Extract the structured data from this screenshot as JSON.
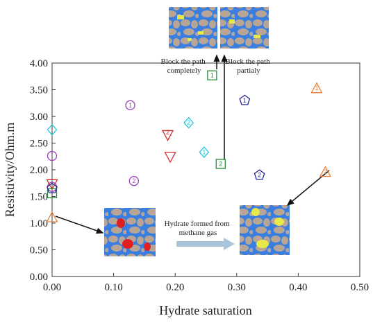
{
  "chart_data": {
    "type": "scatter",
    "xlabel": "Hydrate saturation",
    "ylabel": "Resistivity/Ohm.m",
    "xlim": [
      0,
      0.5
    ],
    "ylim": [
      0,
      4
    ],
    "x_ticks": [
      "0.00",
      "0.10",
      "0.20",
      "0.30",
      "0.40",
      "0.50"
    ],
    "y_ticks": [
      "0.00",
      "0.50",
      "1.00",
      "1.50",
      "2.00",
      "2.50",
      "3.00",
      "3.50",
      "4.00"
    ],
    "grid": false,
    "series": [
      {
        "marker": "circle",
        "color": "#9b3fbf",
        "points": [
          {
            "x": 0.0,
            "y": 2.26,
            "label": ""
          },
          {
            "x": 0.0,
            "y": 1.68,
            "label": ""
          },
          {
            "x": 0.127,
            "y": 3.21,
            "label": "1"
          },
          {
            "x": 0.133,
            "y": 1.79,
            "label": "2"
          }
        ]
      },
      {
        "marker": "diamond",
        "color": "#20c8e0",
        "points": [
          {
            "x": 0.0,
            "y": 2.75,
            "label": ""
          },
          {
            "x": 0.222,
            "y": 2.88,
            "label": "2"
          },
          {
            "x": 0.247,
            "y": 2.33,
            "label": "1"
          }
        ]
      },
      {
        "marker": "triangle-down",
        "color": "#d42a2a",
        "points": [
          {
            "x": 0.0,
            "y": 1.73,
            "label": ""
          },
          {
            "x": 0.188,
            "y": 2.65,
            "label": "2"
          },
          {
            "x": 0.192,
            "y": 2.24,
            "label": ""
          }
        ]
      },
      {
        "marker": "square",
        "color": "#1f8f3a",
        "points": [
          {
            "x": 0.0,
            "y": 1.56,
            "label": ""
          },
          {
            "x": 0.274,
            "y": 2.11,
            "label": "2"
          },
          {
            "x": 0.26,
            "y": 3.77,
            "label": "1"
          }
        ]
      },
      {
        "marker": "pentagon",
        "color": "#23238f",
        "points": [
          {
            "x": 0.0,
            "y": 1.65,
            "label": ""
          },
          {
            "x": 0.313,
            "y": 3.3,
            "label": "1"
          },
          {
            "x": 0.337,
            "y": 1.9,
            "label": "2"
          }
        ]
      },
      {
        "marker": "triangle-up",
        "color": "#e8823a",
        "points": [
          {
            "x": 0.0,
            "y": 1.11,
            "label": ""
          },
          {
            "x": 0.43,
            "y": 3.53,
            "label": "1"
          },
          {
            "x": 0.444,
            "y": 1.96,
            "label": "2"
          }
        ]
      }
    ],
    "annotations": {
      "block_complete": "Block the path\ncompletely",
      "block_partial": "Block the path\npartialy",
      "hydrate_gas": "Hydrate formed from\nmethane gas"
    }
  }
}
